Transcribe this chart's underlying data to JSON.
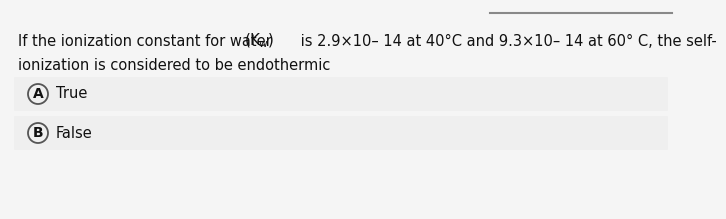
{
  "bg_color": "#f5f5f5",
  "option_box_color": "#efefef",
  "top_line_color": "#888888",
  "text_color": "#111111",
  "circle_edge_color": "#555555",
  "q_line1_pre": "If the ionization constant for water ",
  "q_line1_post": " is 2.9×10– 14 at 40°C and 9.3×10– 14 at 60° C, the self-",
  "q_line2": "ionization is considered to be endothermic",
  "opt_a": "True",
  "opt_b": "False",
  "font_size": 10.5,
  "opt_font_size": 10.5
}
